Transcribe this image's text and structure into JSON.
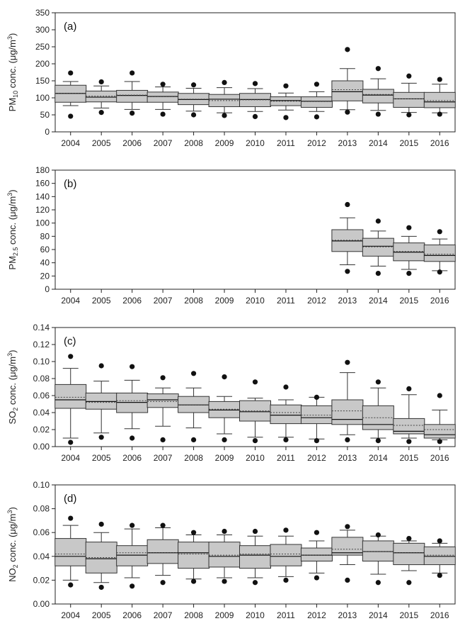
{
  "chart_data": [
    {
      "type": "box",
      "panel_label": "(a)",
      "ylabel": "PM10 conc. (μg/m3)",
      "ylabel_parts": {
        "pre": "PM",
        "sub": "10",
        "mid": " conc. (μg/m",
        "sup": "3",
        "post": ")"
      },
      "ylim": [
        0,
        350
      ],
      "yticks": [
        0,
        50,
        100,
        150,
        200,
        250,
        300,
        350
      ],
      "categories": [
        "2004",
        "2005",
        "2006",
        "2007",
        "2008",
        "2009",
        "2010",
        "2011",
        "2012",
        "2013",
        "2014",
        "2015",
        "2016"
      ],
      "boxes": [
        {
          "q1": 87,
          "q3": 137,
          "median": 113,
          "mean": 113,
          "wlo": 77,
          "whi": 148,
          "out_lo": 46,
          "out_hi": 173
        },
        {
          "q1": 88,
          "q3": 120,
          "median": 102,
          "mean": 105,
          "wlo": 70,
          "whi": 135,
          "out_lo": 57,
          "out_hi": 147
        },
        {
          "q1": 87,
          "q3": 122,
          "median": 107,
          "mean": 108,
          "wlo": 66,
          "whi": 148,
          "out_lo": 55,
          "out_hi": 173
        },
        {
          "q1": 87,
          "q3": 117,
          "median": 104,
          "mean": 103,
          "wlo": 66,
          "whi": 132,
          "out_lo": 52,
          "out_hi": 140
        },
        {
          "q1": 80,
          "q3": 113,
          "median": 95,
          "mean": 96,
          "wlo": 61,
          "whi": 128,
          "out_lo": 50,
          "out_hi": 138
        },
        {
          "q1": 74,
          "q3": 110,
          "median": 96,
          "mean": 92,
          "wlo": 56,
          "whi": 130,
          "out_lo": 48,
          "out_hi": 145
        },
        {
          "q1": 74,
          "q3": 113,
          "median": 95,
          "mean": 94,
          "wlo": 60,
          "whi": 127,
          "out_lo": 45,
          "out_hi": 142
        },
        {
          "q1": 77,
          "q3": 103,
          "median": 92,
          "mean": 90,
          "wlo": 64,
          "whi": 114,
          "out_lo": 42,
          "out_hi": 135
        },
        {
          "q1": 72,
          "q3": 103,
          "median": 90,
          "mean": 89,
          "wlo": 60,
          "whi": 118,
          "out_lo": 44,
          "out_hi": 140
        },
        {
          "q1": 91,
          "q3": 150,
          "median": 118,
          "mean": 124,
          "wlo": 65,
          "whi": 186,
          "out_lo": 58,
          "out_hi": 242
        },
        {
          "q1": 85,
          "q3": 125,
          "median": 108,
          "mean": 110,
          "wlo": 63,
          "whi": 156,
          "out_lo": 52,
          "out_hi": 186
        },
        {
          "q1": 72,
          "q3": 116,
          "median": 97,
          "mean": 97,
          "wlo": 57,
          "whi": 143,
          "out_lo": 50,
          "out_hi": 164
        },
        {
          "q1": 71,
          "q3": 116,
          "median": 88,
          "mean": 92,
          "wlo": 56,
          "whi": 140,
          "out_lo": 52,
          "out_hi": 154
        }
      ]
    },
    {
      "type": "box",
      "panel_label": "(b)",
      "ylabel": "PM2.5 conc. (μg/m3)",
      "ylabel_parts": {
        "pre": "PM",
        "sub": "2.5",
        "mid": " conc. (μg/m",
        "sup": "3",
        "post": ")"
      },
      "ylim": [
        0,
        180
      ],
      "yticks": [
        0,
        20,
        40,
        60,
        80,
        100,
        120,
        140,
        160,
        180
      ],
      "categories": [
        "2004",
        "2005",
        "2006",
        "2007",
        "2008",
        "2009",
        "2010",
        "2011",
        "2012",
        "2013",
        "2014",
        "2015",
        "2016"
      ],
      "boxes": [
        null,
        null,
        null,
        null,
        null,
        null,
        null,
        null,
        null,
        {
          "q1": 57,
          "q3": 90,
          "median": 73,
          "mean": 74,
          "wlo": 37,
          "whi": 108,
          "out_lo": 27,
          "out_hi": 128
        },
        {
          "q1": 50,
          "q3": 77,
          "median": 65,
          "mean": 64,
          "wlo": 35,
          "whi": 88,
          "out_lo": 24,
          "out_hi": 103
        },
        {
          "q1": 43,
          "q3": 70,
          "median": 56,
          "mean": 57,
          "wlo": 30,
          "whi": 80,
          "out_lo": 24,
          "out_hi": 93
        },
        {
          "q1": 42,
          "q3": 67,
          "median": 51,
          "mean": 53,
          "wlo": 28,
          "whi": 76,
          "out_lo": 26,
          "out_hi": 87
        }
      ]
    },
    {
      "type": "box",
      "panel_label": "(c)",
      "ylabel": "SO2 conc. (μg/m3)",
      "ylabel_parts": {
        "pre": "SO",
        "sub": "2",
        "mid": " conc. (μg/m",
        "sup": "3",
        "post": ")"
      },
      "ylim": [
        0,
        0.14
      ],
      "yticks": [
        0.0,
        0.02,
        0.04,
        0.06,
        0.08,
        0.1,
        0.12,
        0.14
      ],
      "categories": [
        "2004",
        "2005",
        "2006",
        "2007",
        "2008",
        "2009",
        "2010",
        "2011",
        "2012",
        "2013",
        "2014",
        "2015",
        "2016"
      ],
      "boxes": [
        {
          "q1": 0.045,
          "q3": 0.073,
          "median": 0.055,
          "mean": 0.058,
          "wlo": 0.01,
          "whi": 0.092,
          "out_lo": 0.005,
          "out_hi": 0.106
        },
        {
          "q1": 0.044,
          "q3": 0.063,
          "median": 0.053,
          "mean": 0.052,
          "wlo": 0.016,
          "whi": 0.077,
          "out_lo": 0.011,
          "out_hi": 0.095
        },
        {
          "q1": 0.04,
          "q3": 0.063,
          "median": 0.052,
          "mean": 0.054,
          "wlo": 0.021,
          "whi": 0.078,
          "out_lo": 0.01,
          "out_hi": 0.094
        },
        {
          "q1": 0.046,
          "q3": 0.062,
          "median": 0.055,
          "mean": 0.053,
          "wlo": 0.024,
          "whi": 0.069,
          "out_lo": 0.008,
          "out_hi": 0.081
        },
        {
          "q1": 0.04,
          "q3": 0.059,
          "median": 0.049,
          "mean": 0.049,
          "wlo": 0.022,
          "whi": 0.069,
          "out_lo": 0.008,
          "out_hi": 0.086
        },
        {
          "q1": 0.034,
          "q3": 0.053,
          "median": 0.043,
          "mean": 0.044,
          "wlo": 0.015,
          "whi": 0.059,
          "out_lo": 0.008,
          "out_hi": 0.082
        },
        {
          "q1": 0.03,
          "q3": 0.054,
          "median": 0.041,
          "mean": 0.042,
          "wlo": 0.011,
          "whi": 0.057,
          "out_lo": 0.007,
          "out_hi": 0.076
        },
        {
          "q1": 0.027,
          "q3": 0.049,
          "median": 0.037,
          "mean": 0.04,
          "wlo": 0.011,
          "whi": 0.055,
          "out_lo": 0.008,
          "out_hi": 0.07
        },
        {
          "q1": 0.027,
          "q3": 0.048,
          "median": 0.034,
          "mean": 0.037,
          "wlo": 0.009,
          "whi": 0.058,
          "out_lo": 0.007,
          "out_hi": 0.058
        },
        {
          "q1": 0.026,
          "q3": 0.055,
          "median": 0.032,
          "mean": 0.042,
          "wlo": 0.014,
          "whi": 0.087,
          "out_lo": 0.008,
          "out_hi": 0.099
        },
        {
          "q1": 0.02,
          "q3": 0.048,
          "median": 0.026,
          "mean": 0.034,
          "wlo": 0.01,
          "whi": 0.069,
          "out_lo": 0.007,
          "out_hi": 0.076
        },
        {
          "q1": 0.015,
          "q3": 0.033,
          "median": 0.018,
          "mean": 0.025,
          "wlo": 0.01,
          "whi": 0.061,
          "out_lo": 0.006,
          "out_hi": 0.068
        },
        {
          "q1": 0.01,
          "q3": 0.026,
          "median": 0.014,
          "mean": 0.02,
          "wlo": 0.008,
          "whi": 0.043,
          "out_lo": 0.006,
          "out_hi": 0.06
        }
      ]
    },
    {
      "type": "box",
      "panel_label": "(d)",
      "ylabel": "NO2 conc. (μg/m3)",
      "ylabel_parts": {
        "pre": "NO",
        "sub": "2",
        "mid": " conc. (μg/m",
        "sup": "3",
        "post": ")"
      },
      "ylim": [
        0,
        0.1
      ],
      "yticks": [
        0.0,
        0.02,
        0.04,
        0.06,
        0.08,
        0.1
      ],
      "categories": [
        "2004",
        "2005",
        "2006",
        "2007",
        "2008",
        "2009",
        "2010",
        "2011",
        "2012",
        "2013",
        "2014",
        "2015",
        "2016"
      ],
      "boxes": [
        {
          "q1": 0.032,
          "q3": 0.055,
          "median": 0.04,
          "mean": 0.042,
          "wlo": 0.02,
          "whi": 0.066,
          "out_lo": 0.016,
          "out_hi": 0.072
        },
        {
          "q1": 0.026,
          "q3": 0.052,
          "median": 0.038,
          "mean": 0.039,
          "wlo": 0.018,
          "whi": 0.06,
          "out_lo": 0.014,
          "out_hi": 0.067
        },
        {
          "q1": 0.032,
          "q3": 0.049,
          "median": 0.041,
          "mean": 0.043,
          "wlo": 0.022,
          "whi": 0.063,
          "out_lo": 0.015,
          "out_hi": 0.066
        },
        {
          "q1": 0.034,
          "q3": 0.054,
          "median": 0.043,
          "mean": 0.043,
          "wlo": 0.024,
          "whi": 0.064,
          "out_lo": 0.018,
          "out_hi": 0.066
        },
        {
          "q1": 0.03,
          "q3": 0.052,
          "median": 0.043,
          "mean": 0.042,
          "wlo": 0.021,
          "whi": 0.058,
          "out_lo": 0.019,
          "out_hi": 0.06
        },
        {
          "q1": 0.031,
          "q3": 0.052,
          "median": 0.04,
          "mean": 0.041,
          "wlo": 0.022,
          "whi": 0.058,
          "out_lo": 0.019,
          "out_hi": 0.061
        },
        {
          "q1": 0.03,
          "q3": 0.049,
          "median": 0.041,
          "mean": 0.042,
          "wlo": 0.022,
          "whi": 0.057,
          "out_lo": 0.018,
          "out_hi": 0.061
        },
        {
          "q1": 0.032,
          "q3": 0.05,
          "median": 0.04,
          "mean": 0.042,
          "wlo": 0.023,
          "whi": 0.057,
          "out_lo": 0.02,
          "out_hi": 0.062
        },
        {
          "q1": 0.036,
          "q3": 0.047,
          "median": 0.041,
          "mean": 0.041,
          "wlo": 0.026,
          "whi": 0.053,
          "out_lo": 0.022,
          "out_hi": 0.06
        },
        {
          "q1": 0.041,
          "q3": 0.056,
          "median": 0.043,
          "mean": 0.046,
          "wlo": 0.033,
          "whi": 0.062,
          "out_lo": 0.02,
          "out_hi": 0.065
        },
        {
          "q1": 0.036,
          "q3": 0.053,
          "median": 0.044,
          "mean": 0.044,
          "wlo": 0.025,
          "whi": 0.057,
          "out_lo": 0.018,
          "out_hi": 0.058
        },
        {
          "q1": 0.033,
          "q3": 0.051,
          "median": 0.043,
          "mean": 0.043,
          "wlo": 0.028,
          "whi": 0.053,
          "out_lo": 0.018,
          "out_hi": 0.055
        },
        {
          "q1": 0.033,
          "q3": 0.048,
          "median": 0.04,
          "mean": 0.041,
          "wlo": 0.026,
          "whi": 0.051,
          "out_lo": 0.024,
          "out_hi": 0.053
        }
      ]
    }
  ],
  "style": {
    "box_fill": "#c8c8c8",
    "box_stroke": "#333333",
    "axis_color": "#222222",
    "point_color": "#111111"
  }
}
